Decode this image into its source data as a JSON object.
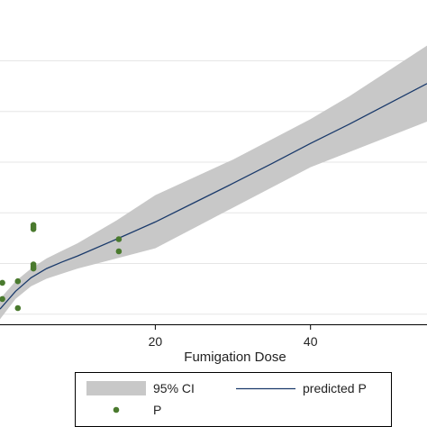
{
  "chart_data": {
    "type": "line",
    "title": "",
    "xlabel": "Fumigation Dose",
    "ylabel": "",
    "xlim": [
      0,
      55
    ],
    "ylim": [
      -2,
      62
    ],
    "x_ticks": [
      20,
      40
    ],
    "x_tick_labels": [
      "20",
      "40"
    ],
    "y_gridlines": [
      0,
      10,
      20,
      30,
      40,
      50
    ],
    "grid": true,
    "colors": {
      "ci_band": "#c8c8c8",
      "line": "#1a3a6b",
      "points": "#4a7a2e",
      "grid": "#e6e6e6"
    },
    "ci_band": {
      "name": "95% CI",
      "x": [
        0,
        2,
        4,
        6,
        8,
        10,
        15,
        20,
        25,
        30,
        35,
        40,
        45,
        50,
        55
      ],
      "lower": [
        -1,
        3,
        5.5,
        7,
        8,
        9,
        11,
        13,
        17,
        21,
        25,
        29,
        32,
        35,
        38
      ],
      "upper": [
        3,
        6.5,
        9,
        11,
        12.5,
        14,
        18.5,
        23.5,
        27,
        30.5,
        34.5,
        38.5,
        43,
        48,
        53
      ]
    },
    "fit_line": {
      "name": "predicted P",
      "x": [
        0,
        2,
        4,
        6,
        8,
        10,
        15,
        20,
        25,
        30,
        35,
        40,
        45,
        50,
        55
      ],
      "y": [
        1,
        4.5,
        7.2,
        9,
        10.3,
        11.5,
        14.8,
        18.2,
        22,
        25.8,
        29.7,
        33.7,
        37.5,
        41.5,
        45.5
      ]
    },
    "points": {
      "name": "P",
      "x": [
        0.3,
        0.3,
        2.3,
        2.3,
        4.3,
        4.3,
        4.3,
        4.3,
        4.3,
        4.3,
        15.3,
        15.3
      ],
      "y": [
        6.2,
        3,
        1.2,
        6.5,
        9,
        9.4,
        9.8,
        16.8,
        17.2,
        17.6,
        12.4,
        14.8
      ]
    },
    "legend": {
      "placement": "bottom",
      "entries": [
        {
          "label": "95% CI",
          "kind": "band"
        },
        {
          "label": "predicted P",
          "kind": "line"
        },
        {
          "label": "P",
          "kind": "marker"
        }
      ]
    }
  }
}
